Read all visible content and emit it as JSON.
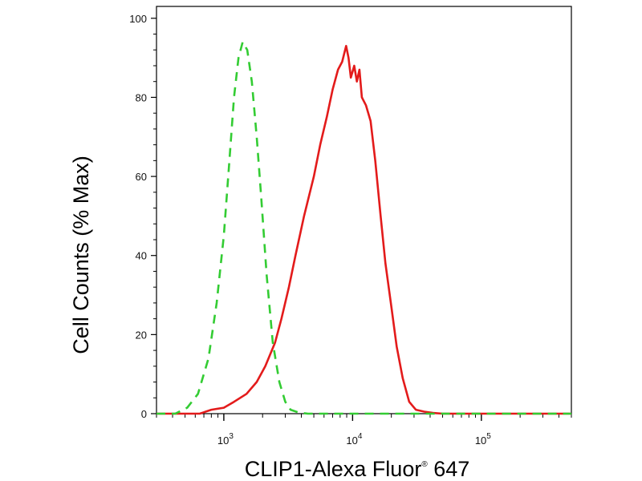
{
  "chart_data": {
    "type": "line",
    "xlabel": "CLIP1-Alexa Fluor",
    "xlabel_mark": "®",
    "xlabel_suffix": " 647",
    "ylabel": "Cell Counts (% Max)",
    "x_scale": "log",
    "xlim": [
      300,
      500000
    ],
    "ylim": [
      0,
      103
    ],
    "y_ticks": [
      "0",
      "20",
      "40",
      "60",
      "80",
      "100"
    ],
    "x_ticks": [
      {
        "base": "10",
        "exp": "3",
        "value": 1000
      },
      {
        "base": "10",
        "exp": "4",
        "value": 10000
      },
      {
        "base": "10",
        "exp": "5",
        "value": 100000
      }
    ],
    "grid": false,
    "legend": "none",
    "series": [
      {
        "color": "#e31b1b",
        "dash": "solid",
        "x": [
          300,
          650,
          800,
          1000,
          1200,
          1500,
          1800,
          2100,
          2500,
          2800,
          3200,
          3600,
          4200,
          5000,
          5600,
          6300,
          7000,
          7700,
          8300,
          8900,
          9300,
          9700,
          10300,
          10800,
          11300,
          11800,
          12700,
          13800,
          15000,
          16500,
          18000,
          20000,
          22000,
          24500,
          27500,
          31000,
          36000,
          42000,
          50000,
          100000,
          500000
        ],
        "y": [
          0,
          0,
          1,
          1.5,
          3,
          5,
          8,
          12,
          18,
          24,
          32,
          40,
          50,
          60,
          68,
          75,
          82,
          87,
          89,
          93,
          90,
          85,
          88,
          84,
          87,
          80,
          78,
          74,
          64,
          50,
          38,
          27,
          17,
          9,
          3,
          1,
          0.5,
          0.2,
          0,
          0,
          0
        ]
      },
      {
        "color": "#33cc33",
        "dash": "dashed",
        "x": [
          300,
          420,
          520,
          630,
          760,
          880,
          1000,
          1100,
          1200,
          1300,
          1400,
          1520,
          1650,
          1800,
          1950,
          2150,
          2400,
          2700,
          3000,
          3300,
          3800,
          4500,
          6000,
          100000,
          500000
        ],
        "y": [
          0,
          0,
          1.5,
          5,
          14,
          28,
          45,
          63,
          80,
          90,
          94,
          92,
          84,
          70,
          55,
          35,
          18,
          8,
          3,
          1,
          0.3,
          0,
          0,
          0,
          0
        ]
      }
    ]
  }
}
